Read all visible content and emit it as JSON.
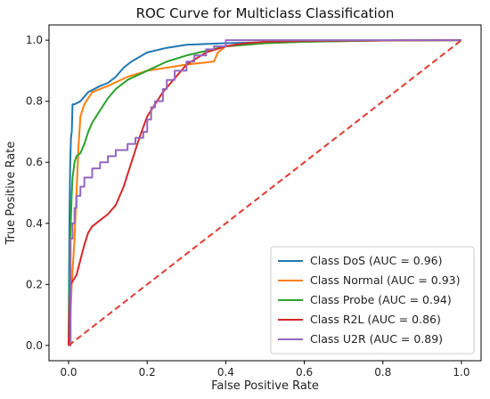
{
  "chart_data": {
    "type": "line",
    "title": "ROC Curve for Multiclass Classification",
    "xlabel": "False Positive Rate",
    "ylabel": "True Positive Rate",
    "xlim": [
      -0.05,
      1.05
    ],
    "ylim": [
      -0.05,
      1.05
    ],
    "xticks": [
      "0.0",
      "0.2",
      "0.4",
      "0.6",
      "0.8",
      "1.0"
    ],
    "yticks": [
      "0.0",
      "0.2",
      "0.4",
      "0.6",
      "0.8",
      "1.0"
    ],
    "grid": false,
    "legend_position": "bottom-right",
    "diagonal": {
      "color": "#e03c31",
      "style": "dashed",
      "x": [
        0,
        1
      ],
      "y": [
        0,
        1
      ]
    },
    "series": [
      {
        "name": "Class DoS (AUC = 0.96)",
        "color": "#1f77b4",
        "step": false,
        "x": [
          0,
          0.002,
          0.004,
          0.006,
          0.008,
          0.01,
          0.015,
          0.03,
          0.05,
          0.08,
          0.1,
          0.12,
          0.14,
          0.16,
          0.2,
          0.25,
          0.3,
          0.4,
          0.5,
          0.6,
          0.8,
          1.0
        ],
        "y": [
          0,
          0.4,
          0.6,
          0.68,
          0.7,
          0.79,
          0.79,
          0.8,
          0.83,
          0.85,
          0.86,
          0.88,
          0.91,
          0.93,
          0.96,
          0.975,
          0.985,
          0.99,
          0.993,
          0.996,
          0.999,
          1.0
        ]
      },
      {
        "name": "Class Normal (AUC = 0.93)",
        "color": "#ff7f0e",
        "step": false,
        "x": [
          0,
          0.003,
          0.008,
          0.015,
          0.02,
          0.025,
          0.03,
          0.04,
          0.05,
          0.06,
          0.08,
          0.1,
          0.15,
          0.2,
          0.25,
          0.3,
          0.37,
          0.38,
          0.4,
          0.5,
          0.6,
          0.8,
          1.0
        ],
        "y": [
          0,
          0.05,
          0.2,
          0.35,
          0.5,
          0.65,
          0.75,
          0.79,
          0.81,
          0.83,
          0.84,
          0.85,
          0.88,
          0.9,
          0.91,
          0.92,
          0.93,
          0.96,
          0.98,
          0.99,
          0.995,
          0.999,
          1.0
        ]
      },
      {
        "name": "Class Probe (AUC = 0.94)",
        "color": "#2ca02c",
        "step": false,
        "x": [
          0,
          0.004,
          0.008,
          0.01,
          0.015,
          0.02,
          0.03,
          0.04,
          0.05,
          0.06,
          0.08,
          0.1,
          0.12,
          0.15,
          0.2,
          0.25,
          0.3,
          0.4,
          0.5,
          0.6,
          0.8,
          1.0
        ],
        "y": [
          0,
          0.35,
          0.5,
          0.55,
          0.6,
          0.62,
          0.63,
          0.66,
          0.7,
          0.73,
          0.77,
          0.81,
          0.84,
          0.87,
          0.9,
          0.93,
          0.95,
          0.98,
          0.99,
          0.995,
          0.999,
          1.0
        ]
      },
      {
        "name": "Class R2L (AUC = 0.86)",
        "color": "#d62728",
        "step": false,
        "x": [
          0,
          0.002,
          0.005,
          0.01,
          0.02,
          0.03,
          0.04,
          0.05,
          0.06,
          0.08,
          0.1,
          0.12,
          0.14,
          0.16,
          0.18,
          0.2,
          0.22,
          0.24,
          0.26,
          0.28,
          0.3,
          0.35,
          0.4,
          0.45,
          0.5,
          0.6,
          0.8,
          1.0
        ],
        "y": [
          0,
          0.12,
          0.2,
          0.21,
          0.23,
          0.28,
          0.33,
          0.37,
          0.39,
          0.41,
          0.43,
          0.46,
          0.52,
          0.6,
          0.68,
          0.75,
          0.79,
          0.83,
          0.86,
          0.89,
          0.92,
          0.96,
          0.98,
          0.99,
          0.995,
          0.998,
          0.999,
          1.0
        ]
      },
      {
        "name": "Class U2R (AUC = 0.89)",
        "color": "#9467bd",
        "step": true,
        "x": [
          0,
          0.005,
          0.01,
          0.015,
          0.02,
          0.03,
          0.04,
          0.06,
          0.08,
          0.1,
          0.12,
          0.15,
          0.17,
          0.19,
          0.2,
          0.21,
          0.22,
          0.24,
          0.25,
          0.27,
          0.3,
          0.32,
          0.35,
          0.37,
          0.4,
          0.45,
          0.5,
          0.6,
          0.8,
          1.0
        ],
        "y": [
          0,
          0.35,
          0.4,
          0.45,
          0.49,
          0.52,
          0.55,
          0.58,
          0.6,
          0.62,
          0.64,
          0.66,
          0.68,
          0.7,
          0.74,
          0.78,
          0.8,
          0.84,
          0.87,
          0.9,
          0.93,
          0.95,
          0.97,
          0.98,
          1.0,
          1.0,
          1.0,
          1.0,
          1.0,
          1.0
        ]
      }
    ]
  }
}
